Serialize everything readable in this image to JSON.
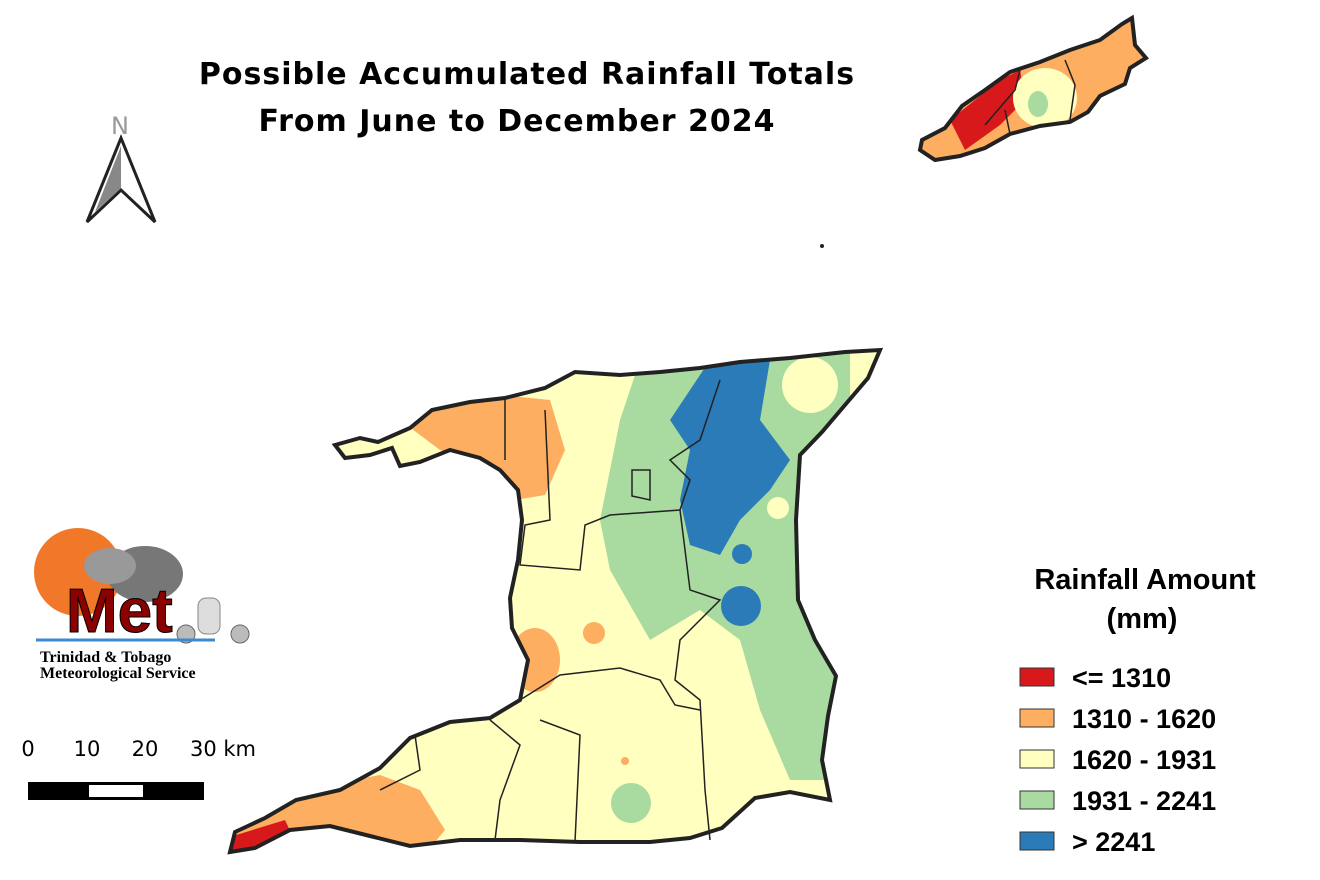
{
  "title": [
    "Possible Accumulated Rainfall Totals",
    "From June to December 2024"
  ],
  "north_label": "N",
  "legend": {
    "title": [
      "Rainfall Amount",
      "(mm)"
    ],
    "items": [
      {
        "label": "<= 1310",
        "color": "#d7191c"
      },
      {
        "label": "1310 - 1620",
        "color": "#fdae61"
      },
      {
        "label": "1620 - 1931",
        "color": "#ffffc0"
      },
      {
        "label": "1931 - 2241",
        "color": "#a9dba0"
      },
      {
        "label": "> 2241",
        "color": "#2b7bb9"
      }
    ]
  },
  "scale_bar": {
    "labels": [
      "0",
      "10",
      "20",
      "30 km"
    ]
  },
  "logo": {
    "wordmark": "Met",
    "lines": [
      "Trinidad & Tobago",
      "Meteorological Service"
    ]
  }
}
